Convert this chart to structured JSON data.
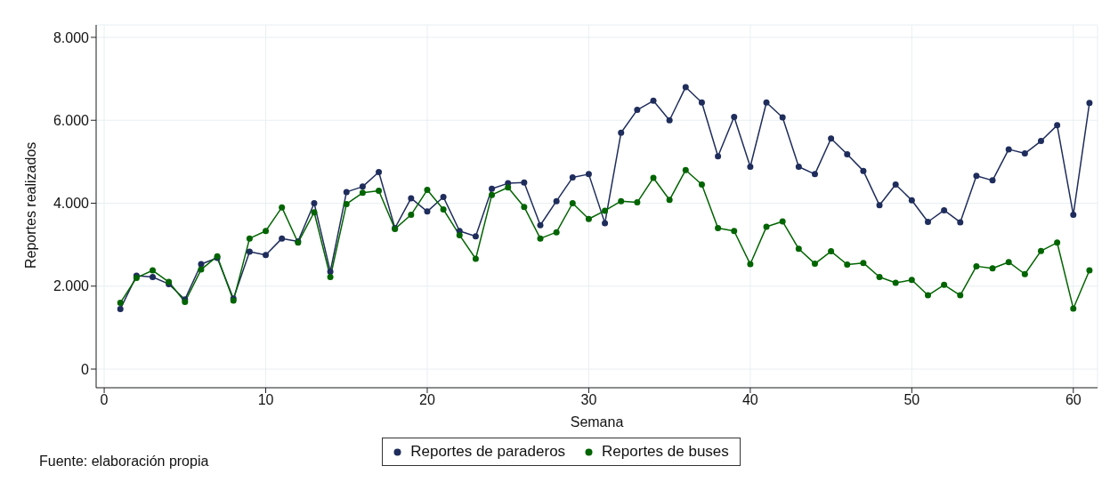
{
  "chart_data": {
    "type": "line",
    "xlabel": "Semana",
    "ylabel": "Reportes realizados",
    "annotations": [
      "Fuente: elaboración propia"
    ],
    "x": [
      1,
      2,
      3,
      4,
      5,
      6,
      7,
      8,
      9,
      10,
      11,
      12,
      13,
      14,
      15,
      16,
      17,
      18,
      19,
      20,
      21,
      22,
      23,
      24,
      25,
      26,
      27,
      28,
      29,
      30,
      31,
      32,
      33,
      34,
      35,
      36,
      37,
      38,
      39,
      40,
      41,
      42,
      43,
      44,
      45,
      46,
      47,
      48,
      49,
      50,
      51,
      52,
      53,
      54,
      55,
      56,
      57,
      58,
      59,
      60,
      61
    ],
    "series": [
      {
        "name": "Reportes de paraderos",
        "color": "#1f2d5c",
        "values": [
          1450,
          2250,
          2220,
          2050,
          1680,
          2530,
          2680,
          1700,
          2830,
          2750,
          3150,
          3080,
          4000,
          2350,
          4270,
          4400,
          4750,
          3400,
          4120,
          3800,
          4150,
          3330,
          3200,
          4350,
          4480,
          4500,
          3470,
          4050,
          4620,
          4700,
          3520,
          5700,
          6250,
          6470,
          6000,
          6800,
          6430,
          5130,
          6080,
          4880,
          6430,
          6070,
          4880,
          4700,
          5560,
          5180,
          4780,
          3950,
          4450,
          4070,
          3550,
          3830,
          3540,
          4660,
          4550,
          5300,
          5200,
          5500,
          5880,
          3720,
          6420
        ]
      },
      {
        "name": "Reportes de buses",
        "color": "#006400",
        "values": [
          1600,
          2200,
          2380,
          2100,
          1620,
          2400,
          2720,
          1650,
          3150,
          3330,
          3900,
          3050,
          3780,
          2220,
          3980,
          4250,
          4300,
          3380,
          3720,
          4320,
          3850,
          3230,
          2660,
          4200,
          4380,
          3910,
          3150,
          3300,
          4000,
          3620,
          3820,
          4050,
          4020,
          4610,
          4080,
          4800,
          4450,
          3400,
          3330,
          2530,
          3430,
          3560,
          2900,
          2540,
          2840,
          2520,
          2560,
          2220,
          2080,
          2150,
          1780,
          2030,
          1780,
          2480,
          2430,
          2580,
          2290,
          2850,
          3050,
          1460,
          2380
        ]
      }
    ],
    "xlim": [
      -0.5,
      61.5
    ],
    "xticks": [
      0,
      10,
      20,
      30,
      40,
      50,
      60
    ],
    "ylim": [
      -450,
      8300
    ],
    "yticks": [
      {
        "value": 0,
        "label": "0"
      },
      {
        "value": 2000,
        "label": "2.000"
      },
      {
        "value": 4000,
        "label": "4.000"
      },
      {
        "value": 6000,
        "label": "6.000"
      },
      {
        "value": 8000,
        "label": "8.000"
      }
    ],
    "grid": true,
    "legend": "bottom",
    "marker": "circle",
    "line_style": "solid"
  }
}
